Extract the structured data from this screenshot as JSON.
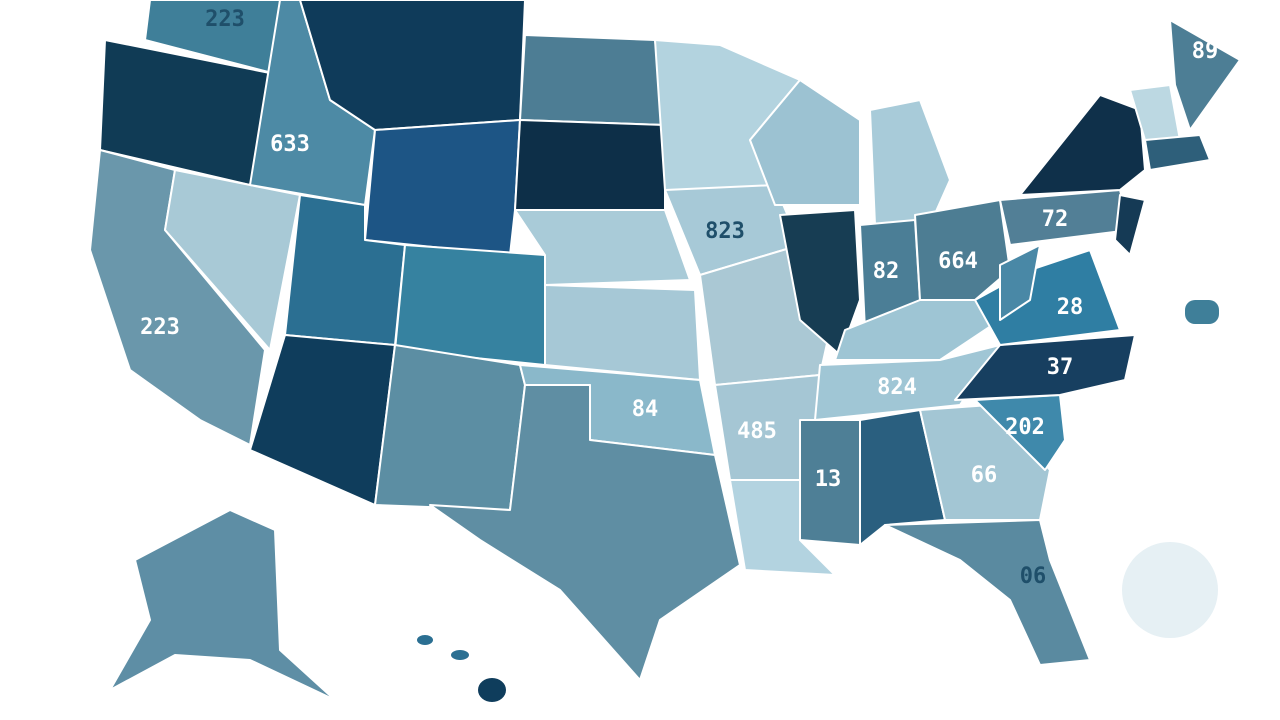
{
  "labels": [
    "223",
    "633",
    "223",
    "823",
    "664",
    "72",
    "89",
    "28",
    "37",
    "202",
    "84",
    "485",
    "824",
    "66",
    "06",
    "82",
    "13"
  ]
}
